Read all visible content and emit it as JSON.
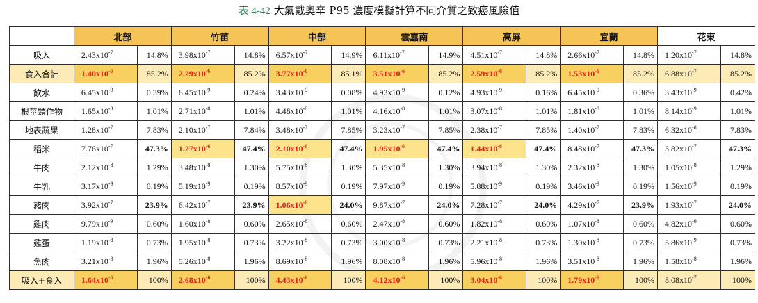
{
  "caption": {
    "number": "表 4-42",
    "title": "大氣戴奧辛 P95 濃度模擬計算不同介質之致癌風險值"
  },
  "regions": [
    "北部",
    "竹苗",
    "中部",
    "雲嘉南",
    "高屏",
    "宜蘭",
    "花東"
  ],
  "rows": [
    {
      "label": "吸入",
      "type": "normal",
      "cells": [
        [
          "2.43x10",
          "-7",
          "14.8%",
          false,
          false
        ],
        [
          "3.98x10",
          "-7",
          "14.8%",
          false,
          false
        ],
        [
          "6.57x10",
          "-7",
          "14.9%",
          false,
          false
        ],
        [
          "6.11x10",
          "-7",
          "14.9%",
          false,
          false
        ],
        [
          "4.51x10",
          "-7",
          "14.8%",
          false,
          false
        ],
        [
          "2.66x10",
          "-7",
          "14.8%",
          false,
          false
        ],
        [
          "1.20x10",
          "-7",
          "14.8%",
          false,
          false
        ]
      ]
    },
    {
      "label": "食入合計",
      "type": "sum",
      "cells": [
        [
          "1.40x10",
          "-6",
          "85.2%",
          true,
          false
        ],
        [
          "2.29x10",
          "-6",
          "85.2%",
          true,
          false
        ],
        [
          "3.77x10",
          "-6",
          "85.1%",
          true,
          false
        ],
        [
          "3.51x10",
          "-6",
          "85.2%",
          true,
          false
        ],
        [
          "2.59x10",
          "-6",
          "85.2%",
          true,
          false
        ],
        [
          "1.53x10",
          "-6",
          "85.2%",
          true,
          false
        ],
        [
          "6.88x10",
          "-7",
          "85.2%",
          false,
          false
        ]
      ]
    },
    {
      "label": "飲水",
      "type": "normal",
      "cells": [
        [
          "6.45x10",
          "-9",
          "0.39%",
          false,
          false
        ],
        [
          "6.45x10",
          "-9",
          "0.24%",
          false,
          false
        ],
        [
          "3.43x10",
          "-9",
          "0.08%",
          false,
          false
        ],
        [
          "4.93x10",
          "-9",
          "0.12%",
          false,
          false
        ],
        [
          "4.93x10",
          "-9",
          "0.16%",
          false,
          false
        ],
        [
          "6.45x10",
          "-9",
          "0.36%",
          false,
          false
        ],
        [
          "3.43x10",
          "-9",
          "0.42%",
          false,
          false
        ]
      ]
    },
    {
      "label": "根莖類作物",
      "type": "normal",
      "cells": [
        [
          "1.65x10",
          "-8",
          "1.01%",
          false,
          false
        ],
        [
          "2.71x10",
          "-8",
          "1.01%",
          false,
          false
        ],
        [
          "4.48x10",
          "-8",
          "1.01%",
          false,
          false
        ],
        [
          "4.16x10",
          "-8",
          "1.01%",
          false,
          false
        ],
        [
          "3.07x10",
          "-8",
          "1.01%",
          false,
          false
        ],
        [
          "1.81x10",
          "-8",
          "1.01%",
          false,
          false
        ],
        [
          "8.14x10",
          "-9",
          "1.01%",
          false,
          false
        ]
      ]
    },
    {
      "label": "地表蔬果",
      "type": "normal",
      "cells": [
        [
          "1.28x10",
          "-7",
          "7.83%",
          false,
          false
        ],
        [
          "2.10x10",
          "-7",
          "7.84%",
          false,
          false
        ],
        [
          "3.48x10",
          "-7",
          "7.85%",
          false,
          false
        ],
        [
          "3.23x10",
          "-7",
          "7.85%",
          false,
          false
        ],
        [
          "2.38x10",
          "-7",
          "7.85%",
          false,
          false
        ],
        [
          "1.40x10",
          "-7",
          "7.83%",
          false,
          false
        ],
        [
          "6.32x10",
          "-8",
          "7.83%",
          false,
          false
        ]
      ]
    },
    {
      "label": "稻米",
      "type": "normal",
      "cells": [
        [
          "7.76x10",
          "-7",
          "47.3%",
          false,
          true
        ],
        [
          "1.27x10",
          "-6",
          "47.4%",
          true,
          true
        ],
        [
          "2.10x10",
          "-6",
          "47.4%",
          true,
          true
        ],
        [
          "1.95x10",
          "-6",
          "47.4%",
          true,
          true
        ],
        [
          "1.44x10",
          "-6",
          "47.4%",
          true,
          true
        ],
        [
          "8.48x10",
          "-7",
          "47.3%",
          false,
          true
        ],
        [
          "3.82x10",
          "-7",
          "47.3%",
          false,
          true
        ]
      ]
    },
    {
      "label": "牛肉",
      "type": "normal",
      "cells": [
        [
          "2.12x10",
          "-8",
          "1.29%",
          false,
          false
        ],
        [
          "3.48x10",
          "-8",
          "1.30%",
          false,
          false
        ],
        [
          "5.75x10",
          "-8",
          "1.30%",
          false,
          false
        ],
        [
          "5.35x10",
          "-8",
          "1.30%",
          false,
          false
        ],
        [
          "3.94x10",
          "-8",
          "1.30%",
          false,
          false
        ],
        [
          "2.32x10",
          "-8",
          "1.30%",
          false,
          false
        ],
        [
          "1.05x10",
          "-8",
          "1.29%",
          false,
          false
        ]
      ]
    },
    {
      "label": "牛乳",
      "type": "normal",
      "cells": [
        [
          "3.17x10",
          "-9",
          "0.19%",
          false,
          false
        ],
        [
          "5.19x10",
          "-9",
          "0.19%",
          false,
          false
        ],
        [
          "8.57x10",
          "-9",
          "0.19%",
          false,
          false
        ],
        [
          "7.97x10",
          "-9",
          "0.19%",
          false,
          false
        ],
        [
          "5.88x10",
          "-9",
          "0.19%",
          false,
          false
        ],
        [
          "3.46x10",
          "-9",
          "0.19%",
          false,
          false
        ],
        [
          "1.56x10",
          "-9",
          "0.19%",
          false,
          false
        ]
      ]
    },
    {
      "label": "豬肉",
      "type": "normal",
      "cells": [
        [
          "3.92x10",
          "-7",
          "23.9%",
          false,
          true
        ],
        [
          "6.42x10",
          "-7",
          "23.9%",
          false,
          true
        ],
        [
          "1.06x10",
          "-6",
          "24.0%",
          true,
          true
        ],
        [
          "9.87x10",
          "-7",
          "24.0%",
          false,
          true
        ],
        [
          "7.28x10",
          "-7",
          "24.0%",
          false,
          true
        ],
        [
          "4.29x10",
          "-7",
          "23.9%",
          false,
          true
        ],
        [
          "1.93x10",
          "-7",
          "24.0%",
          false,
          true
        ]
      ]
    },
    {
      "label": "雞肉",
      "type": "normal",
      "cells": [
        [
          "9.79x10",
          "-9",
          "0.60%",
          false,
          false
        ],
        [
          "1.60x10",
          "-8",
          "0.60%",
          false,
          false
        ],
        [
          "2.65x10",
          "-8",
          "0.60%",
          false,
          false
        ],
        [
          "2.47x10",
          "-8",
          "0.60%",
          false,
          false
        ],
        [
          "1.82x10",
          "-8",
          "0.60%",
          false,
          false
        ],
        [
          "1.07x10",
          "-8",
          "0.60%",
          false,
          false
        ],
        [
          "4.82x10",
          "-9",
          "0.60%",
          false,
          false
        ]
      ]
    },
    {
      "label": "雞蛋",
      "type": "normal",
      "cells": [
        [
          "1.19x10",
          "-8",
          "0.73%",
          false,
          false
        ],
        [
          "1.95x10",
          "-8",
          "0.73%",
          false,
          false
        ],
        [
          "3.22x10",
          "-8",
          "0.73%",
          false,
          false
        ],
        [
          "3.00x10",
          "-8",
          "0.73%",
          false,
          false
        ],
        [
          "2.21x10",
          "-8",
          "0.73%",
          false,
          false
        ],
        [
          "1.30x10",
          "-8",
          "0.73%",
          false,
          false
        ],
        [
          "5.86x10",
          "-9",
          "0.73%",
          false,
          false
        ]
      ]
    },
    {
      "label": "魚肉",
      "type": "normal",
      "cells": [
        [
          "3.21x10",
          "-8",
          "1.96%",
          false,
          false
        ],
        [
          "5.26x10",
          "-8",
          "1.96%",
          false,
          false
        ],
        [
          "8.69x10",
          "-8",
          "1.96%",
          false,
          false
        ],
        [
          "8.08x10",
          "-8",
          "1.96%",
          false,
          false
        ],
        [
          "5.96x10",
          "-8",
          "1.96%",
          false,
          false
        ],
        [
          "3.51x10",
          "-8",
          "1.96%",
          false,
          false
        ],
        [
          "1.58x10",
          "-8",
          "1.96%",
          false,
          false
        ]
      ]
    },
    {
      "label": "吸入+食入",
      "type": "tot",
      "cells": [
        [
          "1.64x10",
          "-6",
          "100%",
          true,
          false
        ],
        [
          "2.68x10",
          "-6",
          "100%",
          true,
          false
        ],
        [
          "4.43x10",
          "-6",
          "100%",
          true,
          false
        ],
        [
          "4.12x10",
          "-6",
          "100%",
          true,
          false
        ],
        [
          "3.04x10",
          "-6",
          "100%",
          true,
          false
        ],
        [
          "1.79x10",
          "-6",
          "100%",
          true,
          false
        ],
        [
          "8.08x10",
          "-7",
          "100%",
          false,
          false
        ]
      ]
    }
  ]
}
